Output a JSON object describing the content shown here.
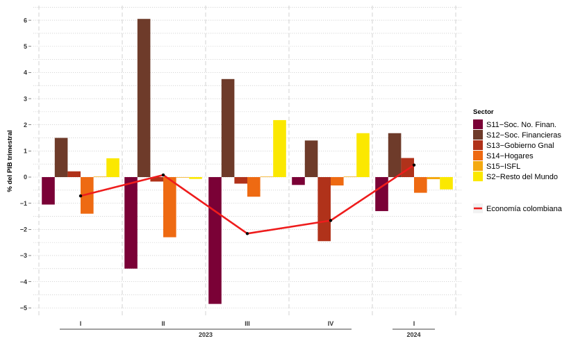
{
  "chart_data": {
    "type": "bar",
    "ylabel": "% del PIB trimestral",
    "ylim": [
      -5.3,
      6.5
    ],
    "yticks": [
      -5,
      -4,
      -3,
      -2,
      -1,
      0,
      1,
      2,
      3,
      4,
      5,
      6
    ],
    "grid": true,
    "legend_position": "right",
    "legend_title": "Sector",
    "categories": [
      "I",
      "II",
      "III",
      "IV",
      "I"
    ],
    "years": [
      {
        "label": "2023",
        "quarters": [
          0,
          1,
          2,
          3
        ]
      },
      {
        "label": "2024",
        "quarters": [
          4
        ]
      }
    ],
    "series": [
      {
        "name": "S11−Soc. No. Finan.",
        "color": "#7a0136",
        "values": [
          -1.05,
          -3.5,
          -4.85,
          -0.3,
          -1.3
        ]
      },
      {
        "name": "S12−Soc. Financieras",
        "color": "#6e3b2a",
        "values": [
          1.5,
          6.05,
          3.75,
          1.4,
          1.68
        ]
      },
      {
        "name": "S13−Gobierno Gnal",
        "color": "#b0321a",
        "values": [
          0.22,
          -0.17,
          -0.25,
          -2.45,
          0.73
        ]
      },
      {
        "name": "S14−Hogares",
        "color": "#ee6a12",
        "values": [
          -1.4,
          -2.3,
          -0.75,
          -0.32,
          -0.6
        ]
      },
      {
        "name": "S15−ISFL",
        "color": "#f4a911",
        "values": [
          0.02,
          -0.02,
          0.02,
          0.02,
          -0.08
        ]
      },
      {
        "name": "S2−Resto del Mundo",
        "color": "#fbe800",
        "values": [
          0.72,
          -0.07,
          2.18,
          1.68,
          -0.47
        ]
      }
    ],
    "line": {
      "name": "Economía colombiana",
      "color": "#ee1c1c",
      "values": [
        -0.72,
        0.08,
        -2.16,
        -1.66,
        0.46
      ]
    }
  }
}
